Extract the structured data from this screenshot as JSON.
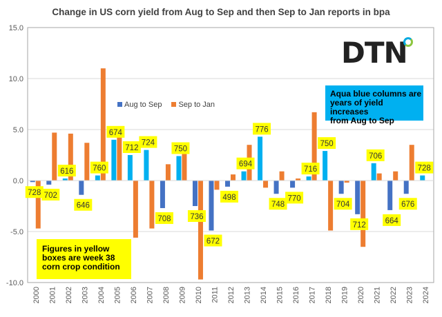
{
  "chart_data": {
    "type": "bar",
    "title": "Change in US corn yield from Aug to Sep and then Sep to Jan reports in bpa",
    "xlabel": "",
    "ylabel": "",
    "ylim": [
      -10,
      15
    ],
    "yticks": [
      "15.0",
      "10.0",
      "5.0",
      "0.0",
      "-5.0",
      "-10.0"
    ],
    "ytick_values": [
      15,
      10,
      5,
      0,
      -5,
      -10
    ],
    "grid": true,
    "legend_position": "upper-left-center",
    "categories": [
      "2000",
      "2001",
      "2002",
      "2003",
      "2004",
      "2005",
      "2006",
      "2007",
      "2008",
      "2009",
      "2010",
      "2011",
      "2012",
      "2013",
      "2014",
      "2015",
      "2016",
      "2017",
      "2018",
      "2019",
      "2020",
      "2021",
      "2022",
      "2023",
      "2024"
    ],
    "series": [
      {
        "name": "Aug to Sep",
        "values": [
          -0.15,
          -0.4,
          0.2,
          -1.4,
          0.5,
          4.0,
          2.5,
          3.0,
          -2.7,
          2.4,
          -2.5,
          -4.9,
          -0.6,
          0.9,
          4.3,
          -1.3,
          -0.7,
          0.4,
          2.9,
          -1.3,
          -3.3,
          1.7,
          -2.9,
          -1.3,
          0.5
        ]
      },
      {
        "name": "Sep to Jan",
        "values": [
          -4.7,
          4.7,
          4.6,
          3.7,
          11.0,
          4.3,
          -5.6,
          -4.7,
          1.6,
          2.6,
          -9.7,
          -0.9,
          0.6,
          3.5,
          -0.7,
          0.9,
          0.2,
          6.7,
          -4.9,
          -0.2,
          -6.5,
          0.7,
          0.9,
          3.5,
          null
        ]
      }
    ],
    "condition_labels": [
      "728",
      "702",
      "616",
      "646",
      "760",
      "674",
      "712",
      "724",
      "708",
      "750",
      "736",
      "672",
      "498",
      "694",
      "776",
      "748",
      "770",
      "716",
      "750",
      "704",
      "712",
      "706",
      "664",
      "676",
      "728"
    ],
    "colors": {
      "aug_decrease": "#4472c4",
      "aug_increase": "#00b0f0",
      "sep_to_jan": "#ed7d31",
      "label_box": "#ffff00"
    },
    "annotations": {
      "yellow_note": [
        "Figures in yellow",
        "boxes are week 38",
        "corn crop condition"
      ],
      "blue_note": [
        "Aqua blue columns are",
        "years of yield increases",
        "from Aug to Sep"
      ]
    },
    "logo": "DTN"
  }
}
